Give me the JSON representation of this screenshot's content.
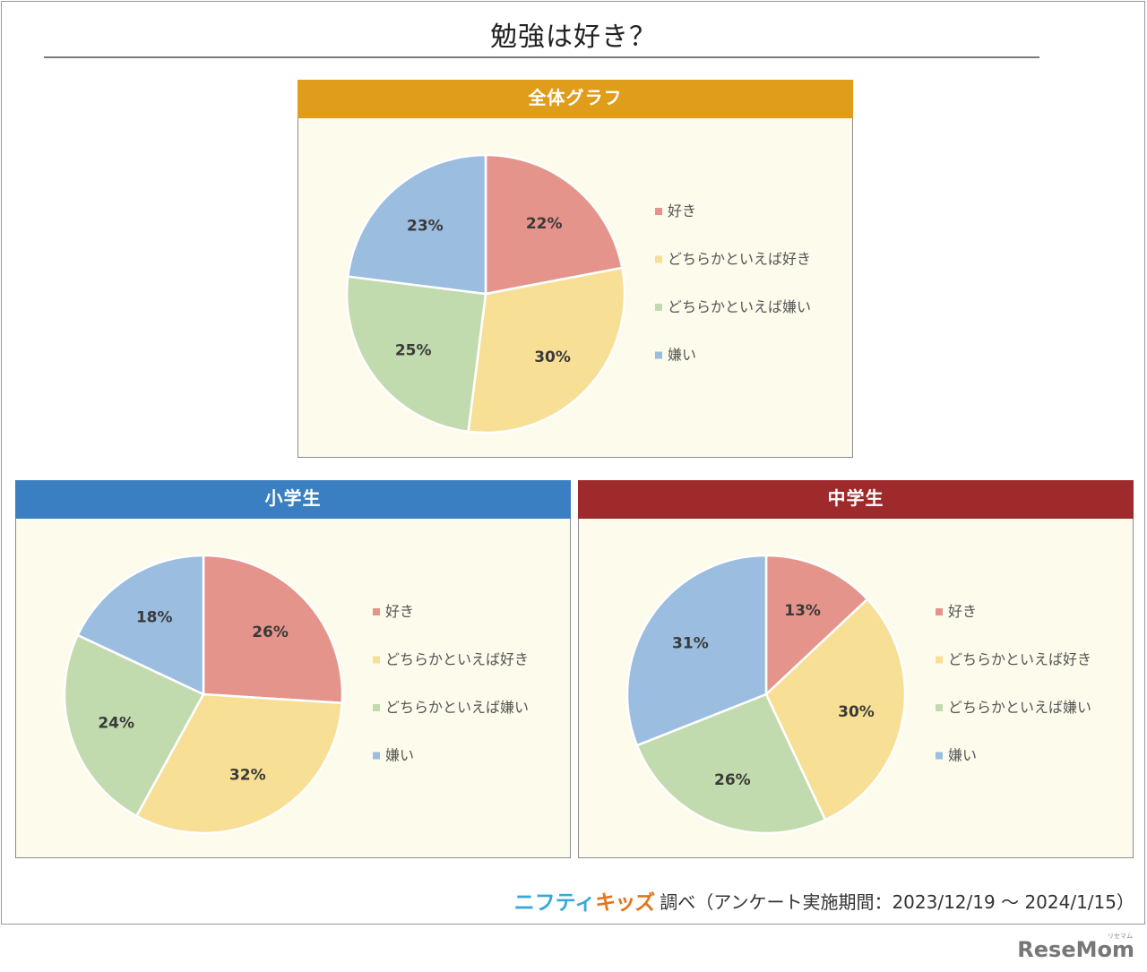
{
  "title": "勉強は好き？",
  "colors": {
    "slice": [
      "#e5948b",
      "#f8df96",
      "#c2dbae",
      "#9bbde0"
    ],
    "header_all": "#e09c1b",
    "header_elementary": "#3a7fc1",
    "header_junior": "#9e2a2b"
  },
  "legend": [
    "好き",
    "どちらかといえば好き",
    "どちらかといえば嫌い",
    "嫌い"
  ],
  "chart_data": [
    {
      "type": "pie",
      "title": "全体グラフ",
      "categories": [
        "好き",
        "どちらかといえば好き",
        "どちらかといえば嫌い",
        "嫌い"
      ],
      "values": [
        22,
        30,
        25,
        23
      ],
      "legend_position": "right"
    },
    {
      "type": "pie",
      "title": "小学生",
      "categories": [
        "好き",
        "どちらかといえば好き",
        "どちらかといえば嫌い",
        "嫌い"
      ],
      "values": [
        26,
        32,
        24,
        18
      ],
      "legend_position": "right"
    },
    {
      "type": "pie",
      "title": "中学生",
      "categories": [
        "好き",
        "どちらかといえば好き",
        "どちらかといえば嫌い",
        "嫌い"
      ],
      "values": [
        13,
        30,
        26,
        31
      ],
      "legend_position": "right"
    }
  ],
  "footer": {
    "logo_part1": "ニフティ",
    "logo_part2": "キッズ",
    "text": "調べ（アンケート実施期間：2023/12/19 ～ 2024/1/15）"
  },
  "watermark": "ReseMom",
  "watermark_kana": "リセマム"
}
